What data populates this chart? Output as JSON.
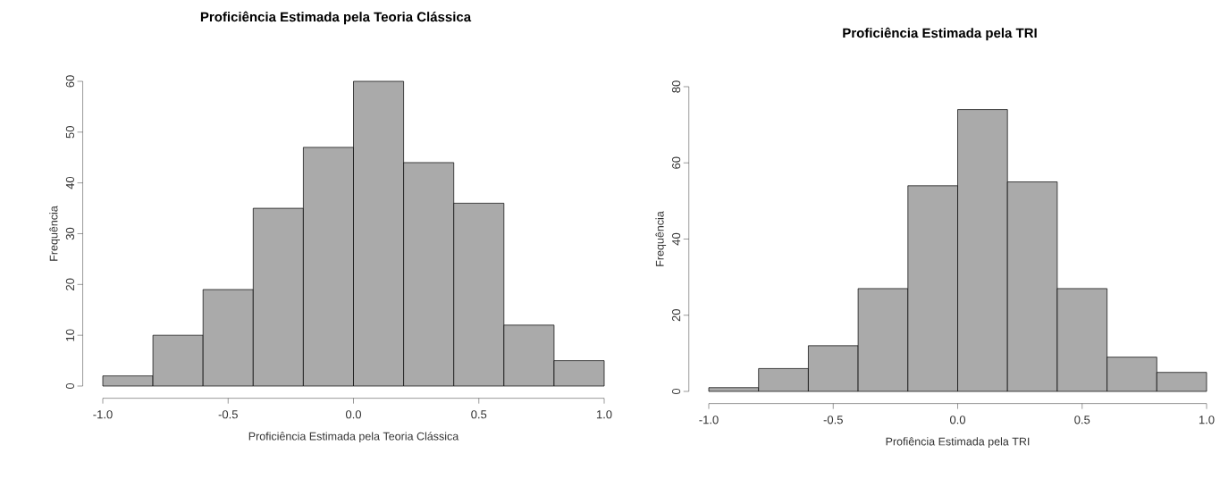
{
  "chart_data": [
    {
      "type": "histogram",
      "title": "Proficiência Estimada pela Teoria Clássica",
      "xlabel": "Proficiência Estimada pela Teoria Clássica",
      "ylabel": "Frequência",
      "bins": [
        -1.0,
        -0.8,
        -0.6,
        -0.4,
        -0.2,
        0.0,
        0.2,
        0.4,
        0.6,
        0.8,
        1.0
      ],
      "values": [
        2,
        10,
        19,
        35,
        47,
        60,
        44,
        36,
        12,
        5
      ],
      "color": "#aaaaaa",
      "xlim": [
        -1.0,
        1.0
      ],
      "ylim": [
        0,
        60
      ],
      "xticks": [
        {
          "value": -1.0,
          "label": "-1.0"
        },
        {
          "value": -0.5,
          "label": "-0.5"
        },
        {
          "value": 0.0,
          "label": "0.0"
        },
        {
          "value": 0.5,
          "label": "0.5"
        },
        {
          "value": 1.0,
          "label": "1.0"
        }
      ],
      "yticks": [
        0,
        10,
        20,
        30,
        40,
        50,
        60
      ]
    },
    {
      "type": "histogram",
      "title": "Proficiência Estimada pela TRI",
      "xlabel": "Profiência Estimada pela TRI",
      "ylabel": "Frequência",
      "bins": [
        -1.0,
        -0.8,
        -0.6,
        -0.4,
        -0.2,
        0.0,
        0.2,
        0.4,
        0.6,
        0.8,
        1.0
      ],
      "values": [
        1,
        6,
        12,
        27,
        54,
        74,
        55,
        27,
        9,
        5
      ],
      "color": "#aaaaaa",
      "xlim": [
        -1.0,
        1.0
      ],
      "ylim": [
        0,
        80
      ],
      "xticks": [
        {
          "value": -1.0,
          "label": "-1.0"
        },
        {
          "value": -0.5,
          "label": "-0.5"
        },
        {
          "value": 0.0,
          "label": "0.0"
        },
        {
          "value": 0.5,
          "label": "0.5"
        },
        {
          "value": 1.0,
          "label": "1.0"
        }
      ],
      "yticks": [
        0,
        20,
        40,
        60,
        80
      ]
    }
  ]
}
